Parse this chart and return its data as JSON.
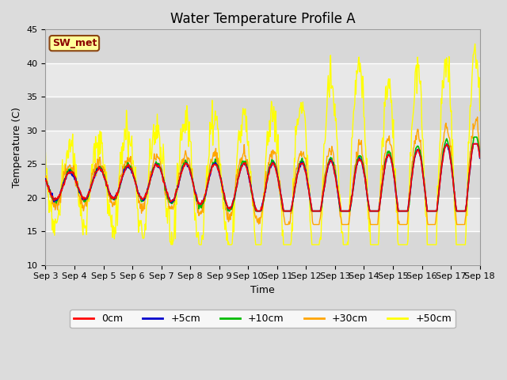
{
  "title": "Water Temperature Profile A",
  "xlabel": "Time",
  "ylabel": "Temperature (C)",
  "ylim": [
    10,
    45
  ],
  "xlim_days": [
    3,
    18
  ],
  "x_tick_labels": [
    "Sep 3",
    "Sep 4",
    "Sep 5",
    "Sep 6",
    "Sep 7",
    "Sep 8",
    "Sep 9",
    "Sep 10",
    "Sep 11",
    "Sep 12",
    "Sep 13",
    "Sep 14",
    "Sep 15",
    "Sep 16",
    "Sep 17",
    "Sep 18"
  ],
  "annotation_text": "SW_met",
  "annotation_color": "#8B0000",
  "annotation_bg": "#FFFF99",
  "annotation_border": "#8B4513",
  "colors": {
    "0cm": "#FF0000",
    "+5cm": "#0000CC",
    "+10cm": "#00BB00",
    "+30cm": "#FFA500",
    "+50cm": "#FFFF00"
  },
  "legend_labels": [
    "0cm",
    "+5cm",
    "+10cm",
    "+30cm",
    "+50cm"
  ],
  "bg_color": "#DCDCDC",
  "plot_bg_light": "#E8E8E8",
  "plot_bg_dark": "#D0D0D0",
  "title_fontsize": 12,
  "axis_fontsize": 9,
  "tick_fontsize": 8,
  "n_points": 720,
  "days_start": 3,
  "days_end": 18
}
